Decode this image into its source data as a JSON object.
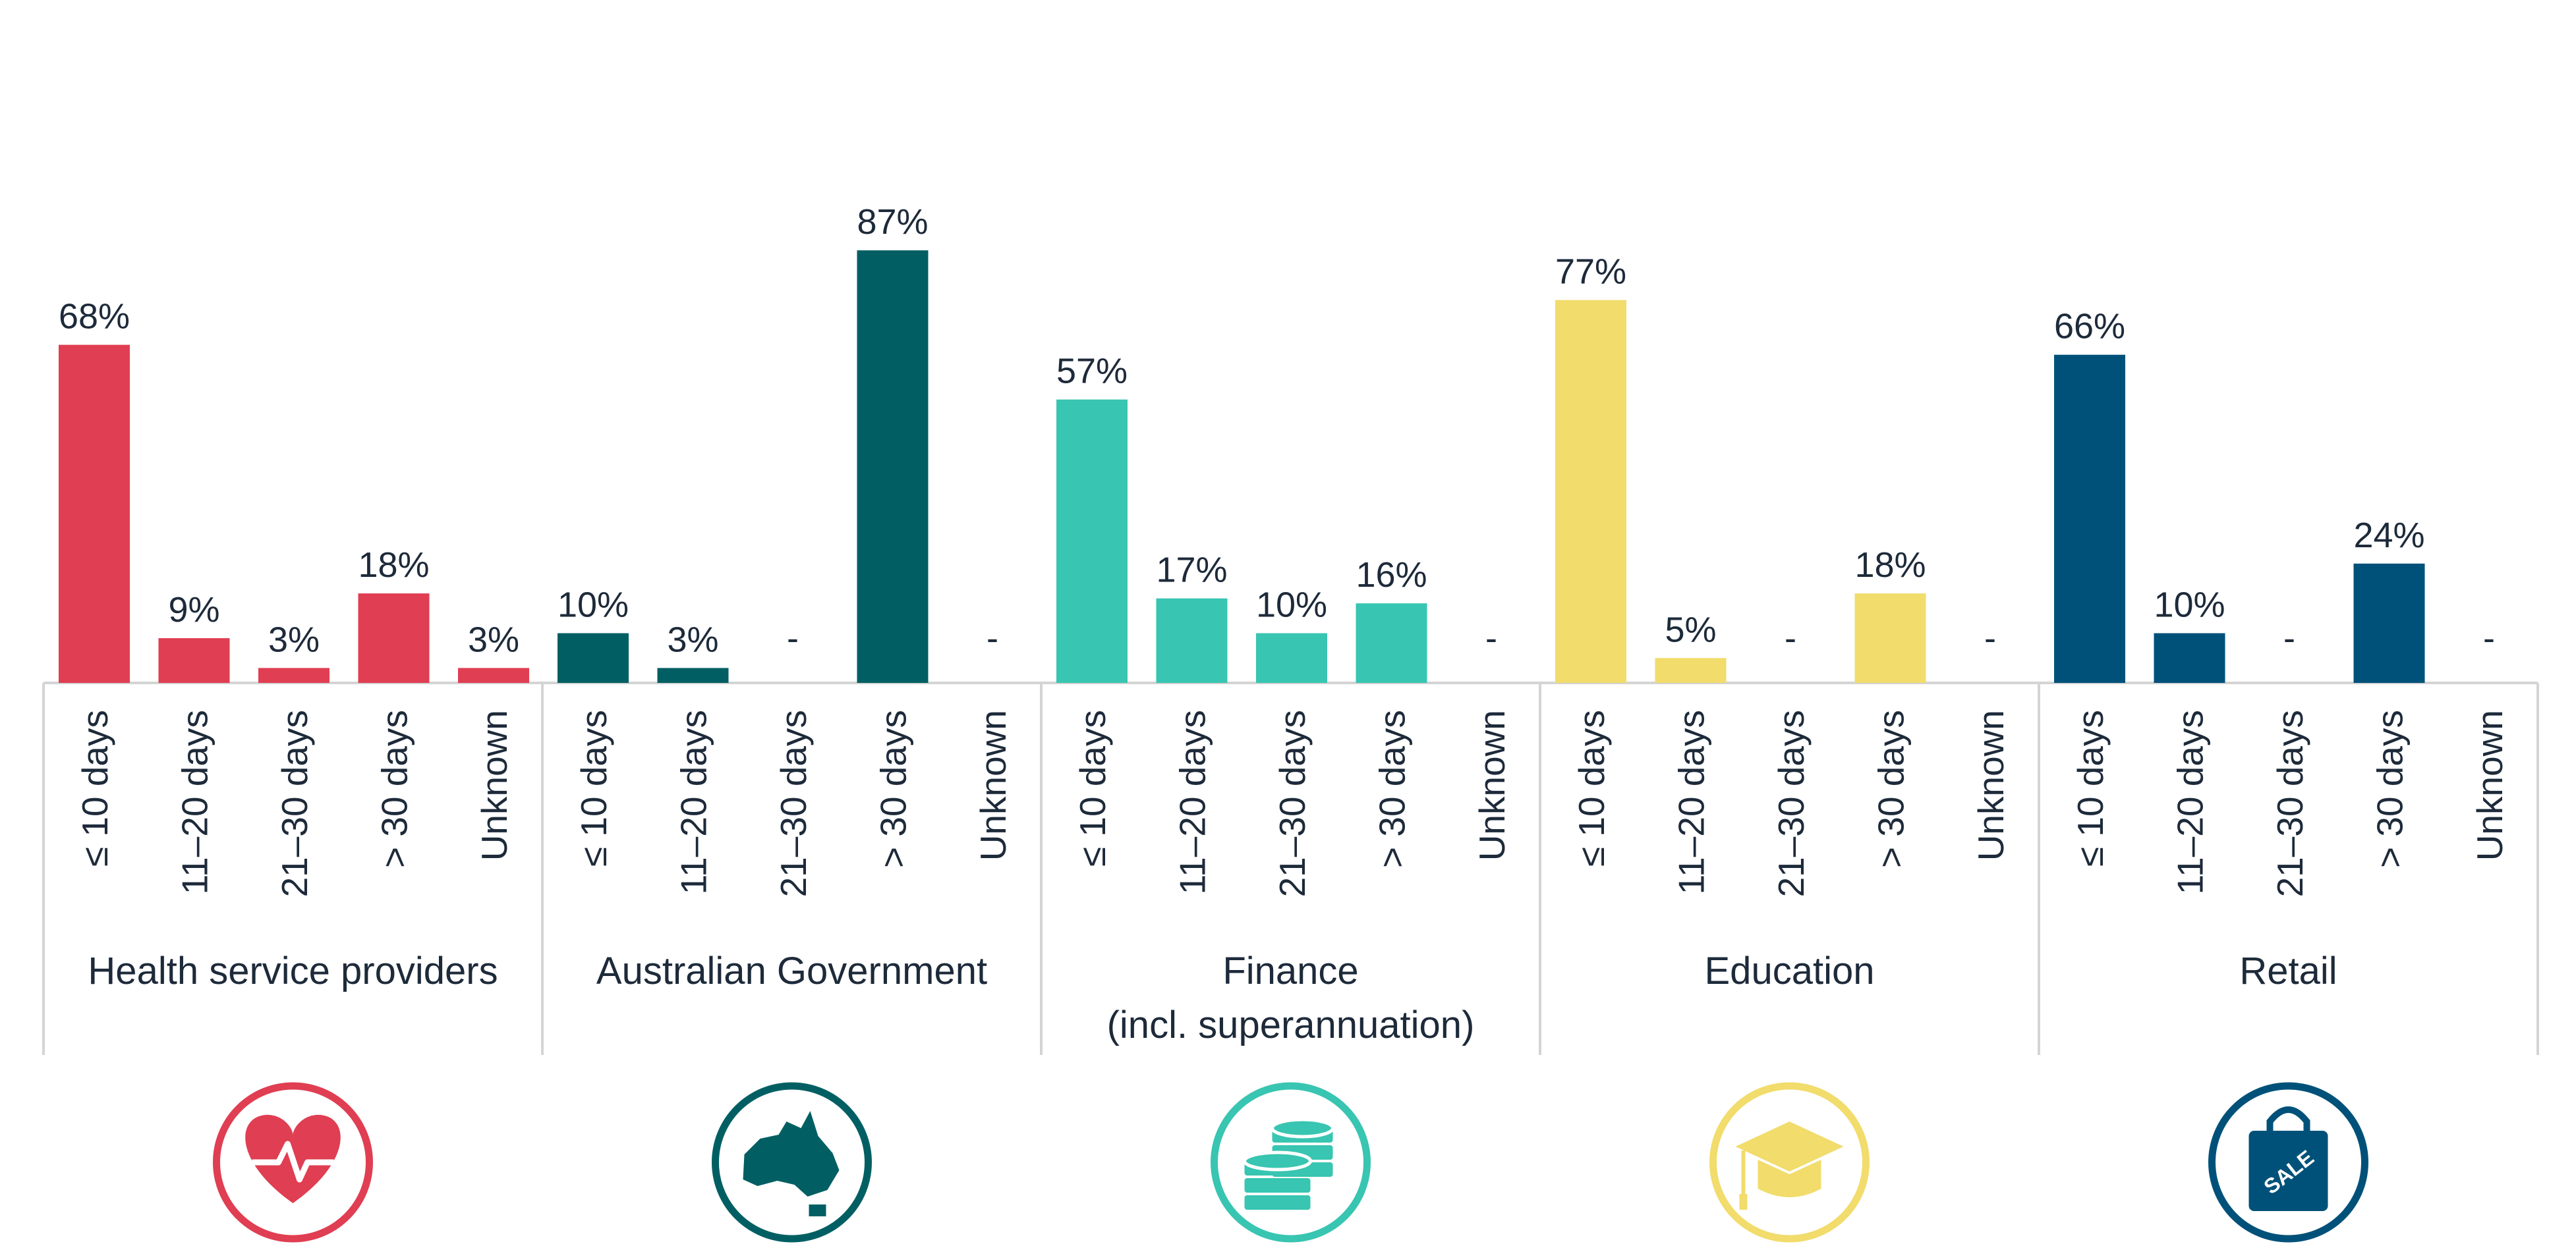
{
  "chart_data": {
    "type": "bar",
    "title": "",
    "xlabel": "",
    "ylabel": "",
    "ylim": [
      0,
      100
    ],
    "grid": false,
    "legend": "none",
    "categories": [
      "≤ 10 days",
      "11–20 days",
      "21–30 days",
      "> 30 days",
      "Unknown"
    ],
    "groups": [
      {
        "name": "Health service providers",
        "name_lines": [
          "Health service providers"
        ],
        "color": "#e03e52",
        "icon": "heart-pulse-icon",
        "values": [
          68,
          9,
          3,
          18,
          3
        ],
        "labels": [
          "68%",
          "9%",
          "3%",
          "18%",
          "3%"
        ]
      },
      {
        "name": "Australian Government",
        "name_lines": [
          "Australian Government"
        ],
        "color": "#015f63",
        "icon": "australia-map-icon",
        "values": [
          10,
          3,
          null,
          87,
          null
        ],
        "labels": [
          "10%",
          "3%",
          "-",
          "87%",
          "-"
        ]
      },
      {
        "name": "Finance (incl. superannuation)",
        "name_lines": [
          "Finance",
          "(incl. superannuation)"
        ],
        "color": "#38c5b1",
        "icon": "coins-icon",
        "values": [
          57,
          17,
          10,
          16,
          null
        ],
        "labels": [
          "57%",
          "17%",
          "10%",
          "16%",
          "-"
        ]
      },
      {
        "name": "Education",
        "name_lines": [
          "Education"
        ],
        "color": "#f1dc6c",
        "icon": "graduation-cap-icon",
        "values": [
          77,
          5,
          null,
          18,
          null
        ],
        "labels": [
          "77%",
          "5%",
          "-",
          "18%",
          "-"
        ]
      },
      {
        "name": "Retail",
        "name_lines": [
          "Retail"
        ],
        "color": "#005179",
        "icon": "shopping-bag-sale-icon",
        "icon_text": "SALE",
        "values": [
          66,
          10,
          null,
          24,
          null
        ],
        "labels": [
          "66%",
          "10%",
          "-",
          "24%",
          "-"
        ]
      }
    ]
  }
}
